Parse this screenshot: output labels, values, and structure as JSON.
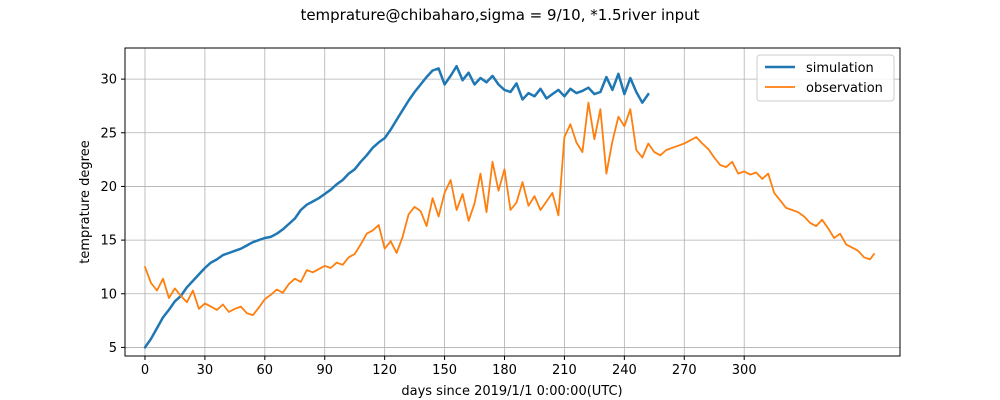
{
  "chart_data": {
    "type": "line",
    "title": "temprature@chibaharo,sigma = 9/10, *1.5river input",
    "xlabel": "days since 2019/1/1 0:00:00(UTC)",
    "ylabel": "temprature degree",
    "xlim": [
      -10,
      378
    ],
    "ylim": [
      4.2,
      32.9
    ],
    "xticks": [
      0,
      30,
      60,
      90,
      120,
      150,
      180,
      210,
      240,
      270,
      300
    ],
    "yticks": [
      5,
      10,
      15,
      20,
      25,
      30
    ],
    "grid": true,
    "legend": "top-right",
    "series": [
      {
        "name": "simulation",
        "color": "#1f77b4",
        "x": [
          0,
          3,
          6,
          9,
          12,
          15,
          18,
          21,
          24,
          27,
          30,
          33,
          36,
          39,
          42,
          45,
          48,
          51,
          54,
          57,
          60,
          63,
          66,
          69,
          72,
          75,
          78,
          81,
          84,
          87,
          90,
          93,
          96,
          99,
          102,
          105,
          108,
          111,
          114,
          117,
          120,
          123,
          126,
          129,
          132,
          135,
          138,
          141,
          144,
          147,
          150,
          153,
          156,
          159,
          162,
          165,
          168,
          171,
          174,
          177,
          180,
          183,
          186,
          189,
          192,
          195,
          198,
          201,
          204,
          207,
          210,
          213,
          216,
          219,
          222,
          225,
          228,
          231,
          234,
          237,
          240,
          243,
          246,
          249,
          252
        ],
        "y": [
          5.0,
          5.8,
          6.8,
          7.8,
          8.5,
          9.3,
          9.8,
          10.6,
          11.2,
          11.8,
          12.4,
          12.9,
          13.2,
          13.6,
          13.8,
          14.0,
          14.2,
          14.5,
          14.8,
          15.0,
          15.2,
          15.3,
          15.6,
          16.0,
          16.5,
          17.0,
          17.8,
          18.3,
          18.6,
          18.9,
          19.3,
          19.7,
          20.2,
          20.6,
          21.2,
          21.6,
          22.3,
          22.9,
          23.6,
          24.1,
          24.5,
          25.3,
          26.2,
          27.1,
          28.0,
          28.8,
          29.5,
          30.2,
          30.8,
          31.0,
          29.5,
          30.3,
          31.2,
          29.9,
          30.6,
          29.5,
          30.1,
          29.7,
          30.3,
          29.5,
          29.0,
          28.8,
          29.6,
          28.1,
          28.7,
          28.4,
          29.1,
          28.2,
          28.6,
          29.0,
          28.4,
          29.1,
          28.7,
          28.9,
          29.2,
          28.6,
          28.8,
          30.2,
          29.0,
          30.5,
          28.6,
          30.1,
          28.8,
          27.8,
          28.6
        ]
      },
      {
        "name": "observation",
        "color": "#ff7f0e",
        "x": [
          0,
          3,
          6,
          9,
          12,
          15,
          18,
          21,
          24,
          27,
          30,
          33,
          36,
          39,
          42,
          45,
          48,
          51,
          54,
          57,
          60,
          63,
          66,
          69,
          72,
          75,
          78,
          81,
          84,
          87,
          90,
          93,
          96,
          99,
          102,
          105,
          108,
          111,
          114,
          117,
          120,
          123,
          126,
          129,
          132,
          135,
          138,
          141,
          144,
          147,
          150,
          153,
          156,
          159,
          162,
          165,
          168,
          171,
          174,
          177,
          180,
          183,
          186,
          189,
          192,
          195,
          198,
          201,
          204,
          207,
          210,
          213,
          216,
          219,
          222,
          225,
          228,
          231,
          234,
          237,
          240,
          243,
          246,
          249,
          252,
          255,
          258,
          261,
          264,
          267,
          270,
          273,
          276,
          279,
          282,
          285,
          288,
          291,
          294,
          297,
          300,
          303,
          306,
          309,
          312,
          315,
          318,
          321,
          324,
          327,
          330,
          333,
          336,
          339,
          342,
          345,
          348,
          351,
          354,
          357,
          360,
          363,
          365
        ],
        "y": [
          12.5,
          11.0,
          10.3,
          11.4,
          9.6,
          10.5,
          9.8,
          9.2,
          10.3,
          8.6,
          9.1,
          8.8,
          8.5,
          9.0,
          8.3,
          8.6,
          8.8,
          8.2,
          8.0,
          8.7,
          9.5,
          9.9,
          10.4,
          10.1,
          10.9,
          11.4,
          11.1,
          12.2,
          12.0,
          12.3,
          12.6,
          12.4,
          12.9,
          12.7,
          13.4,
          13.7,
          14.6,
          15.6,
          15.9,
          16.4,
          14.2,
          14.9,
          13.8,
          15.3,
          17.4,
          18.1,
          17.7,
          16.3,
          18.9,
          17.2,
          19.4,
          20.6,
          17.8,
          19.3,
          16.8,
          18.4,
          21.2,
          17.6,
          22.3,
          19.6,
          21.6,
          17.8,
          18.5,
          20.4,
          18.2,
          19.1,
          17.8,
          18.6,
          19.4,
          17.3,
          24.6,
          25.8,
          24.1,
          23.2,
          27.8,
          24.4,
          27.2,
          21.2,
          24.2,
          26.5,
          25.6,
          27.2,
          23.4,
          22.7,
          24.0,
          23.2,
          22.9,
          23.4,
          23.6,
          23.8,
          24.0,
          24.3,
          24.6,
          24.0,
          23.5,
          22.7,
          22.0,
          21.8,
          22.3,
          21.2,
          21.4,
          21.1,
          21.3,
          20.7,
          21.2,
          19.4,
          18.7,
          18.0,
          17.8,
          17.6,
          17.2,
          16.6,
          16.3,
          16.9,
          16.1,
          15.2,
          15.6,
          14.6,
          14.3,
          14.0,
          13.4,
          13.2,
          13.7
        ]
      }
    ]
  }
}
